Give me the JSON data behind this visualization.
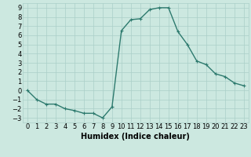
{
  "x": [
    0,
    1,
    2,
    3,
    4,
    5,
    6,
    7,
    8,
    9,
    10,
    11,
    12,
    13,
    14,
    15,
    16,
    17,
    18,
    19,
    20,
    21,
    22,
    23
  ],
  "y": [
    0,
    -1,
    -1.5,
    -1.5,
    -2,
    -2.2,
    -2.5,
    -2.5,
    -3,
    -1.8,
    6.5,
    7.7,
    7.8,
    8.8,
    9.0,
    9.0,
    6.4,
    5.0,
    3.2,
    2.8,
    1.8,
    1.5,
    0.8,
    0.5
  ],
  "line_color": "#2d7a6e",
  "marker": "+",
  "marker_size": 3,
  "bg_color": "#cce8e0",
  "grid_color": "#aacfc8",
  "xlabel": "Humidex (Indice chaleur)",
  "ylim": [
    -3.5,
    9.5
  ],
  "xlim": [
    -0.5,
    23.5
  ],
  "yticks": [
    -3,
    -2,
    -1,
    0,
    1,
    2,
    3,
    4,
    5,
    6,
    7,
    8,
    9
  ],
  "xticks": [
    0,
    1,
    2,
    3,
    4,
    5,
    6,
    7,
    8,
    9,
    10,
    11,
    12,
    13,
    14,
    15,
    16,
    17,
    18,
    19,
    20,
    21,
    22,
    23
  ],
  "tick_fontsize": 6,
  "xlabel_fontsize": 7,
  "line_width": 1.0
}
